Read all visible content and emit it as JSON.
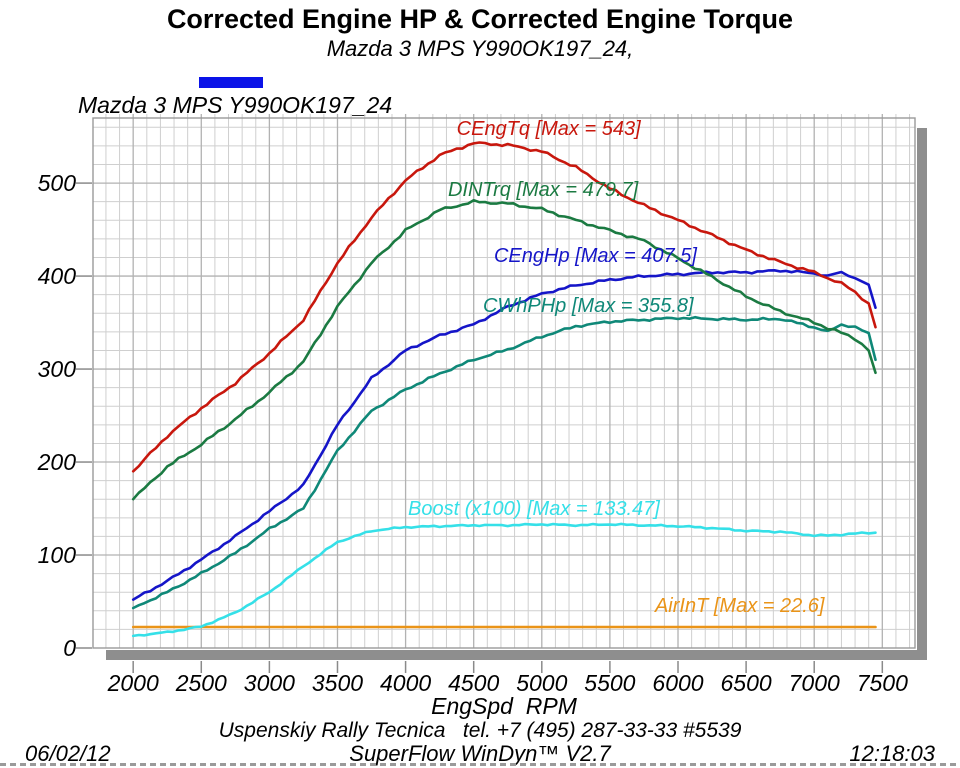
{
  "header": {
    "title": "Corrected Engine HP & Corrected Engine Torque",
    "subtitle": "Mazda 3 MPS Y990OK197_24,"
  },
  "legend": {
    "swatch_color": "#0b13e8",
    "label": "Mazda 3 MPS Y990OK197_24"
  },
  "footer": {
    "shop_line": "Uspenskiy Rally Tecnica   tel. +7 (495) 287-33-33 #5539",
    "software": "SuperFlow WinDyn™ V2.7",
    "date": "06/02/12",
    "time": "12:18:03"
  },
  "chart_data": {
    "type": "line",
    "title": "Corrected Engine HP & Corrected Engine Torque",
    "subtitle": "Mazda 3 MPS Y990OK197_24,",
    "xlabel": "EngSpd  RPM",
    "ylabel": "",
    "grid": true,
    "legend_position": "top-left",
    "xlim": [
      1705,
      7740
    ],
    "ylim": [
      0,
      570
    ],
    "x_ticks": [
      2000,
      2500,
      3000,
      3500,
      4000,
      4500,
      5000,
      5500,
      6000,
      6500,
      7000,
      7500
    ],
    "y_ticks": [
      0,
      100,
      200,
      300,
      400,
      500
    ],
    "x_rpm": [
      2000,
      2250,
      2500,
      2750,
      3000,
      3250,
      3500,
      3750,
      4000,
      4250,
      4500,
      4750,
      5000,
      5250,
      5500,
      5750,
      6000,
      6250,
      6500,
      6750,
      7000,
      7100,
      7200,
      7300,
      7400,
      7450
    ],
    "series": [
      {
        "id": "cengtq",
        "name": "CEngTq",
        "label": "CEngTq [Max = 543]",
        "max": 543,
        "color": "#c8170d",
        "jitter": 1.4,
        "values": [
          190,
          228,
          258,
          285,
          317,
          353,
          414,
          463,
          503,
          530,
          543,
          541,
          534,
          517,
          494,
          476,
          460,
          444,
          428,
          415,
          404,
          398,
          392,
          383,
          370,
          345
        ]
      },
      {
        "id": "dintrq",
        "name": "DINTrq",
        "label": "DINTrq [Max = 479.7]",
        "max": 479.7,
        "color": "#1b7a42",
        "jitter": 1.4,
        "values": [
          160,
          195,
          219,
          246,
          275,
          308,
          367,
          414,
          449,
          471,
          480,
          478,
          472,
          460,
          449,
          438,
          419,
          399,
          378,
          362,
          350,
          344,
          339,
          333,
          320,
          296
        ]
      },
      {
        "id": "cenghp",
        "name": "CEngHp",
        "label": "CEngHp [Max = 407.5]",
        "max": 407.5,
        "color": "#1515c8",
        "jitter": 1.2,
        "values": [
          52,
          72,
          95,
          120,
          147,
          175,
          240,
          290,
          320,
          336,
          348,
          367,
          381,
          390,
          396,
          400,
          402,
          404,
          404,
          406,
          403,
          400,
          404,
          398,
          390,
          366
        ]
      },
      {
        "id": "cwhphp",
        "name": "CWhPHp",
        "label": "CWhPHp [Max = 355.8]",
        "max": 355.8,
        "color": "#0f8878",
        "jitter": 1.2,
        "values": [
          43,
          60,
          80,
          102,
          128,
          150,
          212,
          255,
          278,
          295,
          310,
          321,
          335,
          346,
          351,
          353,
          355,
          354,
          353,
          354,
          345,
          340,
          348,
          345,
          338,
          310
        ]
      },
      {
        "id": "boost",
        "name": "Boost (x100)",
        "label": "Boost (x100) [Max = 133.47]",
        "max": 133.47,
        "color": "#35e0e8",
        "jitter": 0.8,
        "values": [
          13,
          17,
          23,
          38,
          60,
          88,
          114,
          126,
          130,
          131,
          132,
          132,
          133,
          132,
          133,
          132,
          131,
          129,
          126,
          125,
          121,
          121,
          122,
          123,
          124,
          124
        ]
      },
      {
        "id": "airint",
        "name": "AirInT",
        "label": "AirInT [Max = 22.6]",
        "max": 22.6,
        "color": "#ea9418",
        "jitter": 0,
        "values": [
          22.6,
          22.6,
          22.6,
          22.6,
          22.6,
          22.6,
          22.6,
          22.6,
          22.6,
          22.6,
          22.6,
          22.6,
          22.6,
          22.6,
          22.6,
          22.6,
          22.6,
          22.6,
          22.6,
          22.6,
          22.6,
          22.6,
          22.6,
          22.6,
          22.6,
          22.6
        ]
      }
    ],
    "annotations": [
      {
        "series": "cengtq",
        "text": "CEngTq [Max = 543]",
        "color": "#c8170d",
        "rpm": 4375,
        "value": 557
      },
      {
        "series": "dintrq",
        "text": "DINTrq [Max = 479.7]",
        "color": "#1b7a42",
        "rpm": 4311,
        "value": 491
      },
      {
        "series": "cenghp",
        "text": "CEngHp [Max = 407.5]",
        "color": "#1515c8",
        "rpm": 4649,
        "value": 420
      },
      {
        "series": "cwhphp",
        "text": "CWhPHp [Max = 355.8]",
        "color": "#0f8878",
        "rpm": 4568,
        "value": 367
      },
      {
        "series": "boost",
        "text": "Boost (x100) [Max = 133.47]",
        "color": "#35e0e8",
        "rpm": 4018,
        "value": 148
      },
      {
        "series": "airint",
        "text": "AirInT [Max = 22.6]",
        "color": "#ea9418",
        "rpm": 5831,
        "value": 44
      }
    ]
  }
}
